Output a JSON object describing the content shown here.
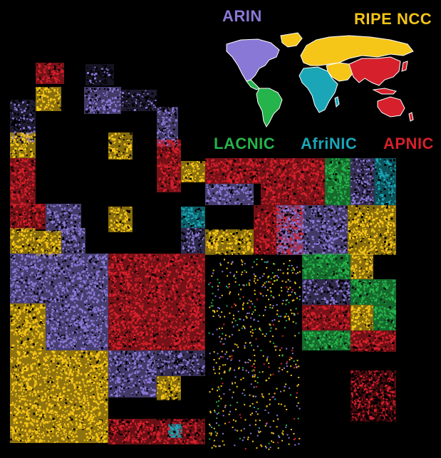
{
  "title": "",
  "colors": {
    "background": "#000000",
    "unallocated": "#000000",
    "ARIN": "#8a78d6",
    "RIPE NCC": "#f5c518",
    "LACNIC": "#25b34b",
    "AfriNIC": "#1aa6b7",
    "APNIC": "#d6202b"
  },
  "labels": {
    "arin": "ARIN",
    "ripe": "RIPE NCC",
    "lacnic": "LACNIC",
    "afrinic": "AfriNIC",
    "apnic": "APNIC"
  },
  "legend_map": {
    "regions": [
      {
        "name": "ARIN",
        "color": "#8a78d6"
      },
      {
        "name": "RIPE NCC",
        "color": "#f5c518"
      },
      {
        "name": "LACNIC",
        "color": "#25b34b"
      },
      {
        "name": "AfriNIC",
        "color": "#1aa6b7"
      },
      {
        "name": "APNIC",
        "color": "#d6202b"
      }
    ]
  }
}
